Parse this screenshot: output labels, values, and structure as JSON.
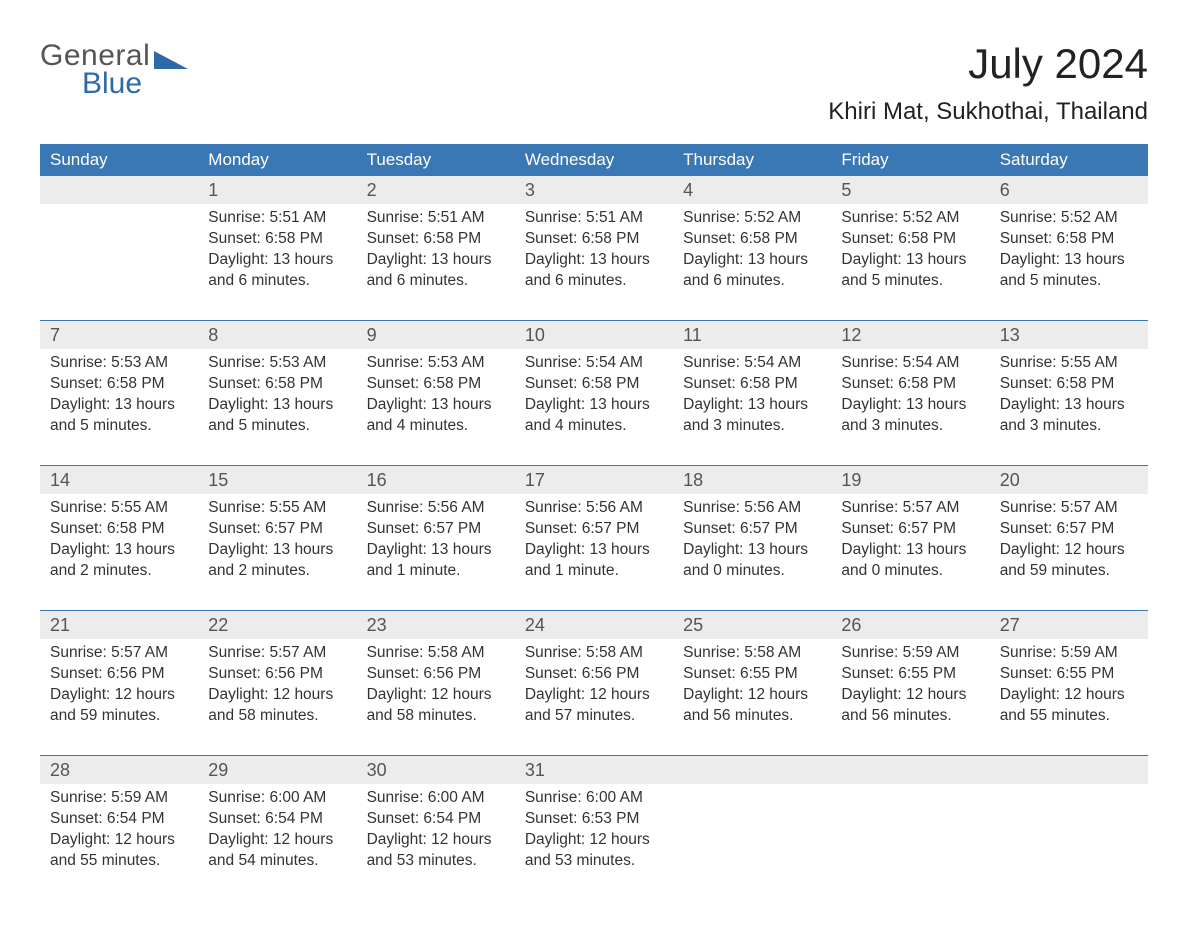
{
  "brand": {
    "word1": "General",
    "word2": "Blue"
  },
  "title": "July 2024",
  "location": "Khiri Mat, Sukhothai, Thailand",
  "colors": {
    "header_bg": "#3a78b5",
    "header_text": "#ffffff",
    "row_sep": "#3a78b5",
    "daynum_bg": "#ececec",
    "text": "#333333",
    "brand_gray": "#555555",
    "brand_blue": "#2f6aa8",
    "page_bg": "#ffffff"
  },
  "fonts": {
    "title_size_pt": 42,
    "location_size_pt": 24,
    "header_size_pt": 17,
    "body_size_pt": 15.5,
    "daynum_size_pt": 18
  },
  "day_headers": [
    "Sunday",
    "Monday",
    "Tuesday",
    "Wednesday",
    "Thursday",
    "Friday",
    "Saturday"
  ],
  "weeks": [
    [
      null,
      {
        "n": "1",
        "sr": "Sunrise: 5:51 AM",
        "ss": "Sunset: 6:58 PM",
        "d1": "Daylight: 13 hours",
        "d2": "and 6 minutes."
      },
      {
        "n": "2",
        "sr": "Sunrise: 5:51 AM",
        "ss": "Sunset: 6:58 PM",
        "d1": "Daylight: 13 hours",
        "d2": "and 6 minutes."
      },
      {
        "n": "3",
        "sr": "Sunrise: 5:51 AM",
        "ss": "Sunset: 6:58 PM",
        "d1": "Daylight: 13 hours",
        "d2": "and 6 minutes."
      },
      {
        "n": "4",
        "sr": "Sunrise: 5:52 AM",
        "ss": "Sunset: 6:58 PM",
        "d1": "Daylight: 13 hours",
        "d2": "and 6 minutes."
      },
      {
        "n": "5",
        "sr": "Sunrise: 5:52 AM",
        "ss": "Sunset: 6:58 PM",
        "d1": "Daylight: 13 hours",
        "d2": "and 5 minutes."
      },
      {
        "n": "6",
        "sr": "Sunrise: 5:52 AM",
        "ss": "Sunset: 6:58 PM",
        "d1": "Daylight: 13 hours",
        "d2": "and 5 minutes."
      }
    ],
    [
      {
        "n": "7",
        "sr": "Sunrise: 5:53 AM",
        "ss": "Sunset: 6:58 PM",
        "d1": "Daylight: 13 hours",
        "d2": "and 5 minutes."
      },
      {
        "n": "8",
        "sr": "Sunrise: 5:53 AM",
        "ss": "Sunset: 6:58 PM",
        "d1": "Daylight: 13 hours",
        "d2": "and 5 minutes."
      },
      {
        "n": "9",
        "sr": "Sunrise: 5:53 AM",
        "ss": "Sunset: 6:58 PM",
        "d1": "Daylight: 13 hours",
        "d2": "and 4 minutes."
      },
      {
        "n": "10",
        "sr": "Sunrise: 5:54 AM",
        "ss": "Sunset: 6:58 PM",
        "d1": "Daylight: 13 hours",
        "d2": "and 4 minutes."
      },
      {
        "n": "11",
        "sr": "Sunrise: 5:54 AM",
        "ss": "Sunset: 6:58 PM",
        "d1": "Daylight: 13 hours",
        "d2": "and 3 minutes."
      },
      {
        "n": "12",
        "sr": "Sunrise: 5:54 AM",
        "ss": "Sunset: 6:58 PM",
        "d1": "Daylight: 13 hours",
        "d2": "and 3 minutes."
      },
      {
        "n": "13",
        "sr": "Sunrise: 5:55 AM",
        "ss": "Sunset: 6:58 PM",
        "d1": "Daylight: 13 hours",
        "d2": "and 3 minutes."
      }
    ],
    [
      {
        "n": "14",
        "sr": "Sunrise: 5:55 AM",
        "ss": "Sunset: 6:58 PM",
        "d1": "Daylight: 13 hours",
        "d2": "and 2 minutes."
      },
      {
        "n": "15",
        "sr": "Sunrise: 5:55 AM",
        "ss": "Sunset: 6:57 PM",
        "d1": "Daylight: 13 hours",
        "d2": "and 2 minutes."
      },
      {
        "n": "16",
        "sr": "Sunrise: 5:56 AM",
        "ss": "Sunset: 6:57 PM",
        "d1": "Daylight: 13 hours",
        "d2": "and 1 minute."
      },
      {
        "n": "17",
        "sr": "Sunrise: 5:56 AM",
        "ss": "Sunset: 6:57 PM",
        "d1": "Daylight: 13 hours",
        "d2": "and 1 minute."
      },
      {
        "n": "18",
        "sr": "Sunrise: 5:56 AM",
        "ss": "Sunset: 6:57 PM",
        "d1": "Daylight: 13 hours",
        "d2": "and 0 minutes."
      },
      {
        "n": "19",
        "sr": "Sunrise: 5:57 AM",
        "ss": "Sunset: 6:57 PM",
        "d1": "Daylight: 13 hours",
        "d2": "and 0 minutes."
      },
      {
        "n": "20",
        "sr": "Sunrise: 5:57 AM",
        "ss": "Sunset: 6:57 PM",
        "d1": "Daylight: 12 hours",
        "d2": "and 59 minutes."
      }
    ],
    [
      {
        "n": "21",
        "sr": "Sunrise: 5:57 AM",
        "ss": "Sunset: 6:56 PM",
        "d1": "Daylight: 12 hours",
        "d2": "and 59 minutes."
      },
      {
        "n": "22",
        "sr": "Sunrise: 5:57 AM",
        "ss": "Sunset: 6:56 PM",
        "d1": "Daylight: 12 hours",
        "d2": "and 58 minutes."
      },
      {
        "n": "23",
        "sr": "Sunrise: 5:58 AM",
        "ss": "Sunset: 6:56 PM",
        "d1": "Daylight: 12 hours",
        "d2": "and 58 minutes."
      },
      {
        "n": "24",
        "sr": "Sunrise: 5:58 AM",
        "ss": "Sunset: 6:56 PM",
        "d1": "Daylight: 12 hours",
        "d2": "and 57 minutes."
      },
      {
        "n": "25",
        "sr": "Sunrise: 5:58 AM",
        "ss": "Sunset: 6:55 PM",
        "d1": "Daylight: 12 hours",
        "d2": "and 56 minutes."
      },
      {
        "n": "26",
        "sr": "Sunrise: 5:59 AM",
        "ss": "Sunset: 6:55 PM",
        "d1": "Daylight: 12 hours",
        "d2": "and 56 minutes."
      },
      {
        "n": "27",
        "sr": "Sunrise: 5:59 AM",
        "ss": "Sunset: 6:55 PM",
        "d1": "Daylight: 12 hours",
        "d2": "and 55 minutes."
      }
    ],
    [
      {
        "n": "28",
        "sr": "Sunrise: 5:59 AM",
        "ss": "Sunset: 6:54 PM",
        "d1": "Daylight: 12 hours",
        "d2": "and 55 minutes."
      },
      {
        "n": "29",
        "sr": "Sunrise: 6:00 AM",
        "ss": "Sunset: 6:54 PM",
        "d1": "Daylight: 12 hours",
        "d2": "and 54 minutes."
      },
      {
        "n": "30",
        "sr": "Sunrise: 6:00 AM",
        "ss": "Sunset: 6:54 PM",
        "d1": "Daylight: 12 hours",
        "d2": "and 53 minutes."
      },
      {
        "n": "31",
        "sr": "Sunrise: 6:00 AM",
        "ss": "Sunset: 6:53 PM",
        "d1": "Daylight: 12 hours",
        "d2": "and 53 minutes."
      },
      null,
      null,
      null
    ]
  ]
}
